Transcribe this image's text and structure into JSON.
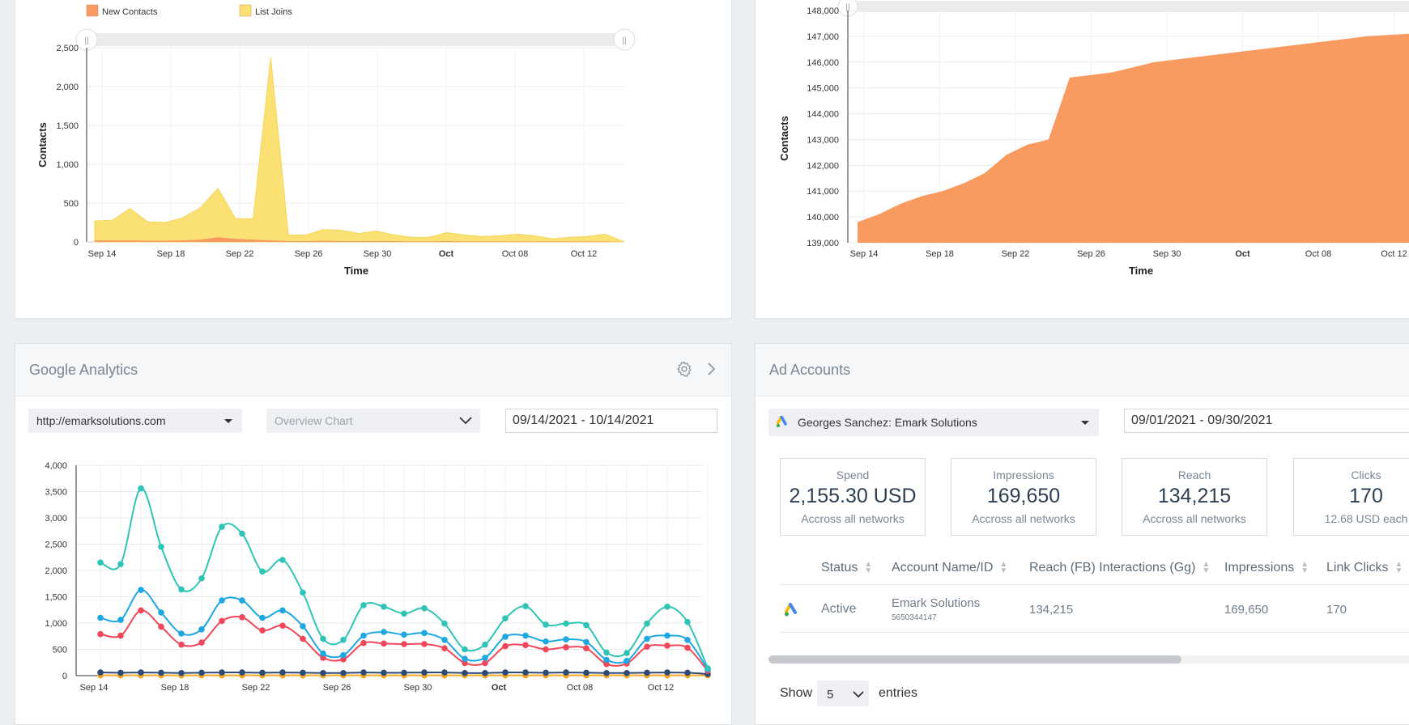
{
  "top_left_chart": {
    "legend": [
      {
        "label": "New Contacts",
        "color": "#f79a63"
      },
      {
        "label": "List Joins",
        "color": "#fbe073"
      }
    ],
    "ylabel": "Contacts",
    "xlabel": "Time",
    "yticks": [
      "0",
      "500",
      "1,000",
      "1,500",
      "2,000",
      "2,500"
    ],
    "xticks": [
      "Sep 14",
      "Sep 18",
      "Sep 22",
      "Sep 26",
      "Sep 30",
      "Oct",
      "Oct 08",
      "Oct 12"
    ],
    "ymax": 2500,
    "list_joins": [
      270,
      280,
      430,
      260,
      250,
      310,
      440,
      690,
      300,
      300,
      2380,
      90,
      90,
      160,
      150,
      110,
      140,
      90,
      60,
      60,
      120,
      90,
      70,
      80,
      100,
      80,
      40,
      60,
      70,
      100,
      10
    ],
    "new_contacts": [
      20,
      20,
      20,
      15,
      15,
      20,
      30,
      60,
      40,
      30,
      20,
      10,
      10,
      15,
      10,
      10,
      10,
      10,
      5,
      5,
      10,
      5,
      5,
      5,
      5,
      5,
      5,
      5,
      5,
      5,
      0
    ]
  },
  "top_right_chart": {
    "ylabel": "Contacts",
    "xlabel": "Time",
    "yticks": [
      "139,000",
      "140,000",
      "141,000",
      "142,000",
      "143,000",
      "144,000",
      "145,000",
      "146,000",
      "147,000",
      "148,000"
    ],
    "xticks": [
      "Sep 14",
      "Sep 18",
      "Sep 22",
      "Sep 26",
      "Sep 30",
      "Oct",
      "Oct 08",
      "Oct 12"
    ],
    "ymin": 139000,
    "ymax": 148000,
    "total": [
      139800,
      140100,
      140500,
      140800,
      141000,
      141300,
      141700,
      142400,
      142800,
      143000,
      145400,
      145500,
      145600,
      145800,
      146000,
      146100,
      146200,
      146300,
      146400,
      146500,
      146600,
      146700,
      146800,
      146900,
      147000,
      147050,
      147100,
      147150
    ]
  },
  "google_analytics": {
    "title": "Google Analytics",
    "site_select": "http://emarksolutions.com",
    "chart_select": "Overview Chart",
    "date_range": "09/14/2021 - 10/14/2021",
    "yticks": [
      "0",
      "500",
      "1,000",
      "1,500",
      "2,000",
      "2,500",
      "3,000",
      "3,500",
      "4,000"
    ],
    "xticks": [
      "Sep 14",
      "Sep 18",
      "Sep 22",
      "Sep 26",
      "Sep 30",
      "Oct",
      "Oct 08",
      "Oct 12"
    ],
    "ymax": 4000,
    "series": [
      {
        "name": "teal",
        "color": "#2ec4b6",
        "values": [
          2150,
          2120,
          3560,
          2450,
          1640,
          1850,
          2830,
          2700,
          1980,
          2200,
          1580,
          700,
          680,
          1340,
          1310,
          1180,
          1280,
          990,
          500,
          590,
          1090,
          1320,
          970,
          990,
          960,
          440,
          430,
          990,
          1310,
          1020,
          140
        ]
      },
      {
        "name": "blue",
        "color": "#1ea7e1",
        "values": [
          1100,
          1060,
          1630,
          1200,
          800,
          880,
          1430,
          1430,
          1100,
          1240,
          940,
          420,
          390,
          760,
          830,
          780,
          810,
          680,
          320,
          340,
          740,
          760,
          650,
          690,
          640,
          300,
          280,
          700,
          760,
          680,
          120
        ]
      },
      {
        "name": "red",
        "color": "#f0485a",
        "values": [
          790,
          760,
          1240,
          930,
          590,
          630,
          1040,
          1110,
          860,
          950,
          700,
          340,
          310,
          620,
          610,
          600,
          600,
          520,
          240,
          240,
          560,
          580,
          500,
          540,
          520,
          220,
          230,
          550,
          570,
          530,
          90
        ]
      },
      {
        "name": "navy",
        "color": "#2c4a75",
        "values": [
          60,
          55,
          60,
          55,
          50,
          55,
          60,
          60,
          55,
          60,
          55,
          50,
          50,
          60,
          55,
          55,
          60,
          60,
          50,
          50,
          60,
          60,
          55,
          60,
          55,
          50,
          50,
          55,
          60,
          55,
          30
        ]
      },
      {
        "name": "orange",
        "color": "#f5a623",
        "values": [
          5,
          5,
          5,
          5,
          5,
          5,
          5,
          5,
          5,
          5,
          5,
          5,
          5,
          5,
          5,
          5,
          5,
          5,
          5,
          5,
          5,
          5,
          5,
          5,
          5,
          5,
          5,
          5,
          5,
          5,
          5
        ]
      }
    ]
  },
  "ad_accounts": {
    "title": "Ad Accounts",
    "account_select": "Georges Sanchez: Emark Solutions",
    "date_range": "09/01/2021 - 09/30/2021",
    "stats": [
      {
        "label": "Spend",
        "value": "2,155.30 USD",
        "sub": "Accross all networks"
      },
      {
        "label": "Impressions",
        "value": "169,650",
        "sub": "Accross all networks"
      },
      {
        "label": "Reach",
        "value": "134,215",
        "sub": "Accross all networks"
      },
      {
        "label": "Clicks",
        "value": "170",
        "sub": "12.68 USD each"
      }
    ],
    "columns": [
      "Status",
      "Account Name/ID",
      "Reach (FB) Interactions (Gg)",
      "Impressions",
      "Link Clicks"
    ],
    "rows": [
      {
        "status": "Active",
        "name": "Emark Solutions",
        "id": "5650344147",
        "reach": "134,215",
        "impressions": "169,650",
        "link_clicks": "170"
      }
    ],
    "show_label": "Show",
    "entries_value": "5",
    "entries_label": "entries"
  }
}
